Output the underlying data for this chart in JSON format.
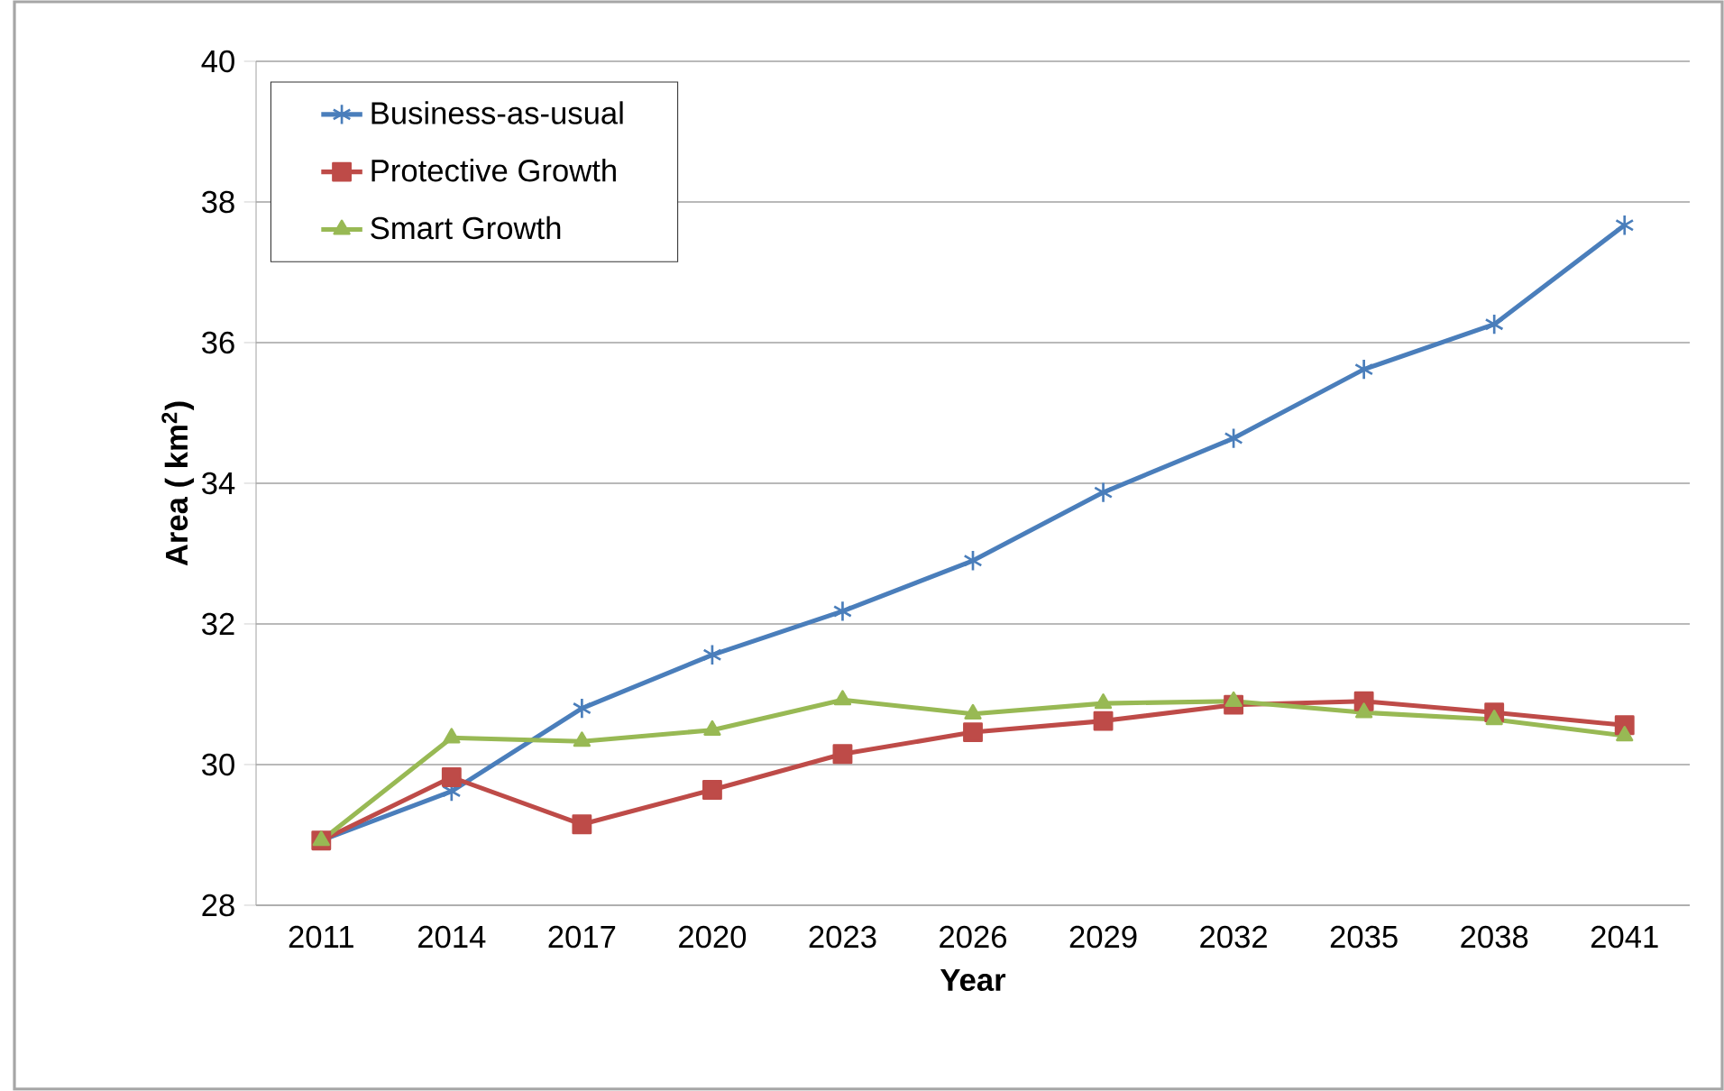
{
  "chart_data": {
    "type": "line",
    "xlabel": "Year",
    "ylabel": "Area ( km$^{2}$)",
    "categories": [
      "2011",
      "2014",
      "2017",
      "2020",
      "2023",
      "2026",
      "2029",
      "2032",
      "2035",
      "2038",
      "2041"
    ],
    "ylim": [
      28,
      40
    ],
    "yticks": [
      28,
      30,
      32,
      34,
      36,
      38,
      40
    ],
    "grid": "y",
    "legend": "top left",
    "line_style": "solid",
    "series": [
      {
        "name": "Business-as-usual",
        "color": "#4a7ebb",
        "marker": "cross",
        "values": [
          28.92,
          29.62,
          30.8,
          31.56,
          32.18,
          32.9,
          33.87,
          34.64,
          35.62,
          36.26,
          37.67
        ]
      },
      {
        "name": "Protective Growth",
        "color": "#be4b48",
        "marker": "square",
        "values": [
          28.92,
          29.82,
          29.15,
          29.64,
          30.15,
          30.46,
          30.62,
          30.85,
          30.9,
          30.74,
          30.56
        ]
      },
      {
        "name": "Smart Growth",
        "color": "#98b954",
        "marker": "triangle",
        "values": [
          28.92,
          30.38,
          30.33,
          30.49,
          30.92,
          30.72,
          30.87,
          30.9,
          30.74,
          30.64,
          30.41
        ]
      }
    ]
  }
}
